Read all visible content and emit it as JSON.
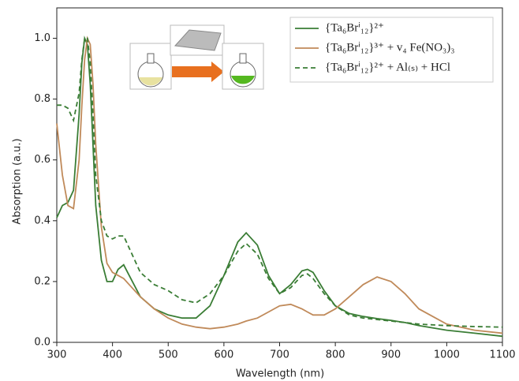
{
  "chart_data": {
    "type": "line",
    "xlabel": "Wavelength (nm)",
    "ylabel": "Absorption (a.u.)",
    "x": [
      300,
      310,
      320,
      330,
      340,
      345,
      350,
      355,
      360,
      365,
      370,
      380,
      390,
      400,
      410,
      420,
      430,
      450,
      475,
      500,
      525,
      550,
      575,
      600,
      625,
      640,
      660,
      680,
      700,
      720,
      740,
      750,
      760,
      780,
      800,
      825,
      850,
      875,
      900,
      925,
      950,
      1000,
      1050,
      1100
    ],
    "series": [
      {
        "name": "{Ta₆Brⁱ₁₂}²⁺",
        "color": "#3a7d35",
        "dashed": false,
        "values": [
          0.41,
          0.45,
          0.46,
          0.5,
          0.75,
          0.92,
          1.0,
          0.98,
          0.85,
          0.65,
          0.45,
          0.27,
          0.2,
          0.2,
          0.24,
          0.255,
          0.22,
          0.15,
          0.11,
          0.09,
          0.08,
          0.08,
          0.12,
          0.22,
          0.33,
          0.36,
          0.32,
          0.22,
          0.16,
          0.19,
          0.235,
          0.24,
          0.23,
          0.17,
          0.12,
          0.095,
          0.085,
          0.078,
          0.072,
          0.065,
          0.055,
          0.04,
          0.03,
          0.02
        ]
      },
      {
        "name": "{Ta₆Brⁱ₁₂}³⁺ + v₄ Fe(NO₃)₃",
        "color": "#c08a5a",
        "dashed": false,
        "values": [
          0.72,
          0.55,
          0.45,
          0.44,
          0.6,
          0.78,
          0.93,
          1.0,
          0.98,
          0.85,
          0.65,
          0.38,
          0.26,
          0.23,
          0.22,
          0.21,
          0.19,
          0.15,
          0.11,
          0.08,
          0.06,
          0.05,
          0.045,
          0.05,
          0.06,
          0.07,
          0.08,
          0.1,
          0.12,
          0.125,
          0.11,
          0.1,
          0.09,
          0.09,
          0.11,
          0.15,
          0.19,
          0.215,
          0.2,
          0.16,
          0.11,
          0.06,
          0.04,
          0.03
        ]
      },
      {
        "name": "{Ta₆Brⁱ₁₂}²⁺ + Al₍ₛ₎ + HCl",
        "color": "#3a7d35",
        "dashed": true,
        "values": [
          0.78,
          0.78,
          0.77,
          0.73,
          0.82,
          0.93,
          1.0,
          1.0,
          0.92,
          0.75,
          0.55,
          0.4,
          0.35,
          0.34,
          0.35,
          0.35,
          0.31,
          0.23,
          0.19,
          0.17,
          0.14,
          0.13,
          0.16,
          0.22,
          0.3,
          0.325,
          0.29,
          0.21,
          0.16,
          0.18,
          0.22,
          0.225,
          0.21,
          0.16,
          0.12,
          0.09,
          0.08,
          0.075,
          0.07,
          0.065,
          0.06,
          0.055,
          0.052,
          0.05
        ]
      }
    ],
    "xlim": [
      300,
      1100
    ],
    "ylim": [
      0,
      1.1
    ],
    "xticks": [
      300,
      400,
      500,
      600,
      700,
      800,
      900,
      1000,
      1100
    ],
    "yticks": [
      {
        "value": 0,
        "label": "0.0"
      },
      0.2,
      0.4,
      0.6,
      0.8,
      {
        "value": 1,
        "label": "1.0"
      }
    ],
    "legend": "upper right"
  }
}
